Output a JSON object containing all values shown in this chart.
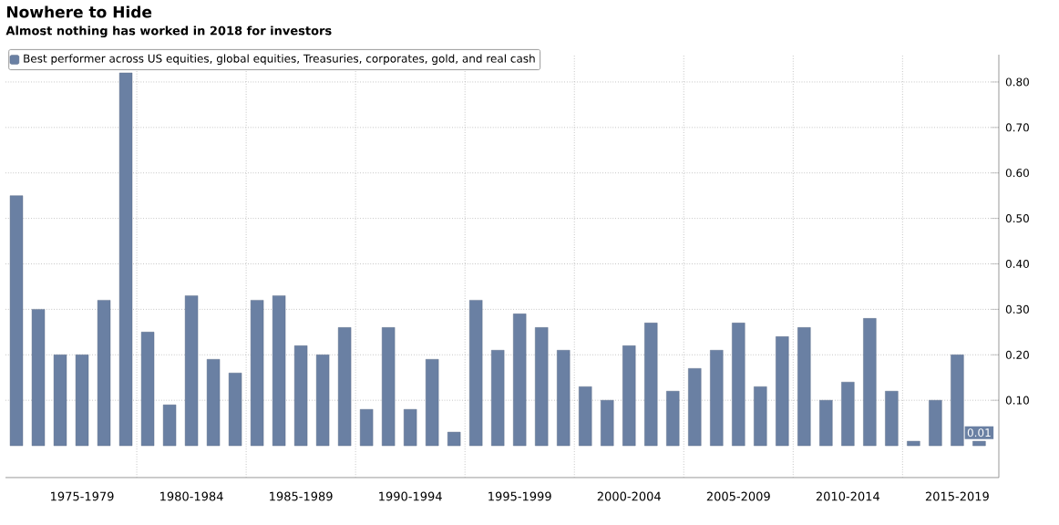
{
  "chart_data": {
    "type": "bar",
    "title": "Nowhere to Hide",
    "subtitle": "Almost nothing has worked in 2018 for investors",
    "categories": [
      null,
      null,
      null,
      "1975-1979",
      null,
      null,
      null,
      null,
      "1980-1984",
      null,
      null,
      null,
      null,
      "1985-1989",
      null,
      null,
      null,
      null,
      "1990-1994",
      null,
      null,
      null,
      null,
      "1995-1999",
      null,
      null,
      null,
      null,
      "2000-2004",
      null,
      null,
      null,
      null,
      "2005-2009",
      null,
      null,
      null,
      null,
      "2010-2014",
      null,
      null,
      null,
      null,
      "2015-2019",
      null
    ],
    "series": [
      {
        "name": "Best performer across US equities, global equities, Treasuries, corporates, gold, and real cash",
        "color": "#6a80a3",
        "values": [
          0.55,
          0.3,
          0.2,
          0.2,
          0.32,
          0.82,
          0.25,
          0.09,
          0.33,
          0.19,
          0.16,
          0.32,
          0.33,
          0.22,
          0.2,
          0.26,
          0.08,
          0.26,
          0.08,
          0.19,
          0.03,
          0.32,
          0.21,
          0.29,
          0.26,
          0.21,
          0.13,
          0.1,
          0.22,
          0.27,
          0.12,
          0.17,
          0.21,
          0.27,
          0.13,
          0.24,
          0.26,
          0.1,
          0.14,
          0.28,
          0.12,
          0.01,
          0.1,
          0.2,
          0.01
        ],
        "value_labels": [
          null,
          null,
          null,
          null,
          null,
          null,
          null,
          null,
          null,
          null,
          null,
          null,
          null,
          null,
          null,
          null,
          null,
          null,
          null,
          null,
          null,
          null,
          null,
          null,
          null,
          null,
          null,
          null,
          null,
          null,
          null,
          null,
          null,
          null,
          null,
          null,
          null,
          null,
          null,
          null,
          null,
          null,
          null,
          null,
          "0.01"
        ]
      }
    ],
    "ylim": [
      -0.07,
      0.86
    ],
    "yticks": [
      {
        "value": 0.1,
        "label": "0.10"
      },
      {
        "value": 0.2,
        "label": "0.20"
      },
      {
        "value": 0.3,
        "label": "0.30"
      },
      {
        "value": 0.4,
        "label": "0.40"
      },
      {
        "value": 0.5,
        "label": "0.50"
      },
      {
        "value": 0.6,
        "label": "0.60"
      },
      {
        "value": 0.7,
        "label": "0.70"
      },
      {
        "value": 0.8,
        "label": "0.80"
      }
    ],
    "grid": true,
    "legend": "top left"
  }
}
